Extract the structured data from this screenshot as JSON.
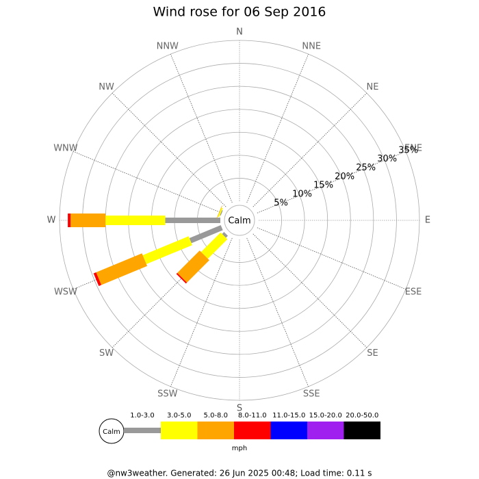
{
  "chart_data": {
    "type": "windrose",
    "title": "Wind rose for 06 Sep 2016",
    "categories": [
      "N",
      "NNE",
      "NE",
      "ENE",
      "E",
      "ESE",
      "SE",
      "SSE",
      "S",
      "SSW",
      "SW",
      "WSW",
      "W",
      "WNW",
      "NW",
      "NNW"
    ],
    "calm_label": "Calm",
    "rlim": [
      0,
      35
    ],
    "rticks": [
      {
        "value": 5,
        "label": "5%"
      },
      {
        "value": 10,
        "label": "10%"
      },
      {
        "value": 15,
        "label": "15%"
      },
      {
        "value": 20,
        "label": "20%"
      },
      {
        "value": 25,
        "label": "25%"
      },
      {
        "value": 30,
        "label": "30%"
      },
      {
        "value": 35,
        "label": "35%"
      }
    ],
    "series": [
      {
        "name": "1.0-3.0",
        "color": "#999999",
        "values": [
          0,
          0,
          0,
          0,
          0,
          0,
          0,
          0,
          0,
          0,
          0.6,
          7.4,
          12,
          0.2,
          0,
          0
        ]
      },
      {
        "name": "3.0-5.0",
        "color": "#ffff00",
        "values": [
          0,
          0,
          0,
          0,
          0,
          0,
          0,
          0,
          0,
          0,
          6,
          10.8,
          13,
          0.3,
          0,
          0
        ]
      },
      {
        "name": "5.0-8.0",
        "color": "#ffa500",
        "values": [
          0,
          0,
          0,
          0,
          0,
          0,
          0,
          0,
          0,
          0,
          6.9,
          10.8,
          7.6,
          0.1,
          0,
          0
        ]
      },
      {
        "name": "8.0-11.0",
        "color": "#ff0000",
        "values": [
          0,
          0,
          0,
          0,
          0,
          0,
          0,
          0,
          0,
          0,
          0.3,
          0.6,
          0.6,
          0,
          0,
          0
        ]
      },
      {
        "name": "11.0-15.0",
        "color": "#0000ff",
        "values": [
          0,
          0,
          0,
          0,
          0,
          0,
          0,
          0,
          0,
          0,
          0,
          0,
          0,
          0,
          0,
          0
        ]
      },
      {
        "name": "15.0-20.0",
        "color": "#a020f0",
        "values": [
          0,
          0,
          0,
          0,
          0,
          0,
          0,
          0,
          0,
          0,
          0,
          0,
          0,
          0,
          0,
          0
        ]
      },
      {
        "name": "20.0-50.0",
        "color": "#000000",
        "values": [
          0,
          0,
          0,
          0,
          0,
          0,
          0,
          0,
          0,
          0,
          0,
          0,
          0,
          0,
          0,
          0
        ]
      }
    ],
    "units_label": "mph",
    "footer": "@nw3weather. Generated: 26 Jun 2025 00:48; Load time: 0.11 s"
  }
}
